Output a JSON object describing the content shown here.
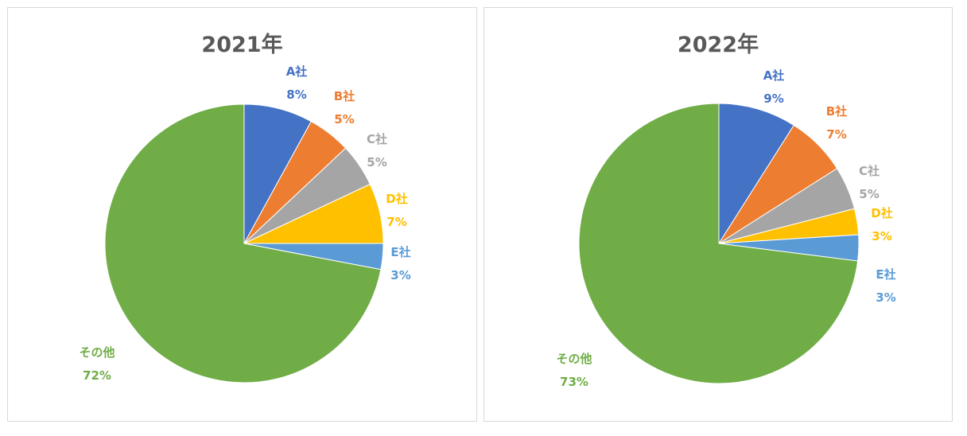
{
  "chart_data": [
    {
      "type": "pie",
      "title": "2021年",
      "slices": [
        {
          "label": "A社",
          "pct_label": "8%",
          "value": 8,
          "color": "#4472C4"
        },
        {
          "label": "B社",
          "pct_label": "5%",
          "value": 5,
          "color": "#ED7D31"
        },
        {
          "label": "C社",
          "pct_label": "5%",
          "value": 5,
          "color": "#A5A5A5"
        },
        {
          "label": "D社",
          "pct_label": "7%",
          "value": 7,
          "color": "#FFC000"
        },
        {
          "label": "E社",
          "pct_label": "3%",
          "value": 3,
          "color": "#5B9BD5"
        },
        {
          "label": "その他",
          "pct_label": "72%",
          "value": 72,
          "color": "#70AD47"
        }
      ]
    },
    {
      "type": "pie",
      "title": "2022年",
      "slices": [
        {
          "label": "A社",
          "pct_label": "9%",
          "value": 9,
          "color": "#4472C4"
        },
        {
          "label": "B社",
          "pct_label": "7%",
          "value": 7,
          "color": "#ED7D31"
        },
        {
          "label": "C社",
          "pct_label": "5%",
          "value": 5,
          "color": "#A5A5A5"
        },
        {
          "label": "D社",
          "pct_label": "3%",
          "value": 3,
          "color": "#FFC000"
        },
        {
          "label": "E社",
          "pct_label": "3%",
          "value": 3,
          "color": "#5B9BD5"
        },
        {
          "label": "その他",
          "pct_label": "73%",
          "value": 73,
          "color": "#70AD47"
        }
      ]
    }
  ]
}
